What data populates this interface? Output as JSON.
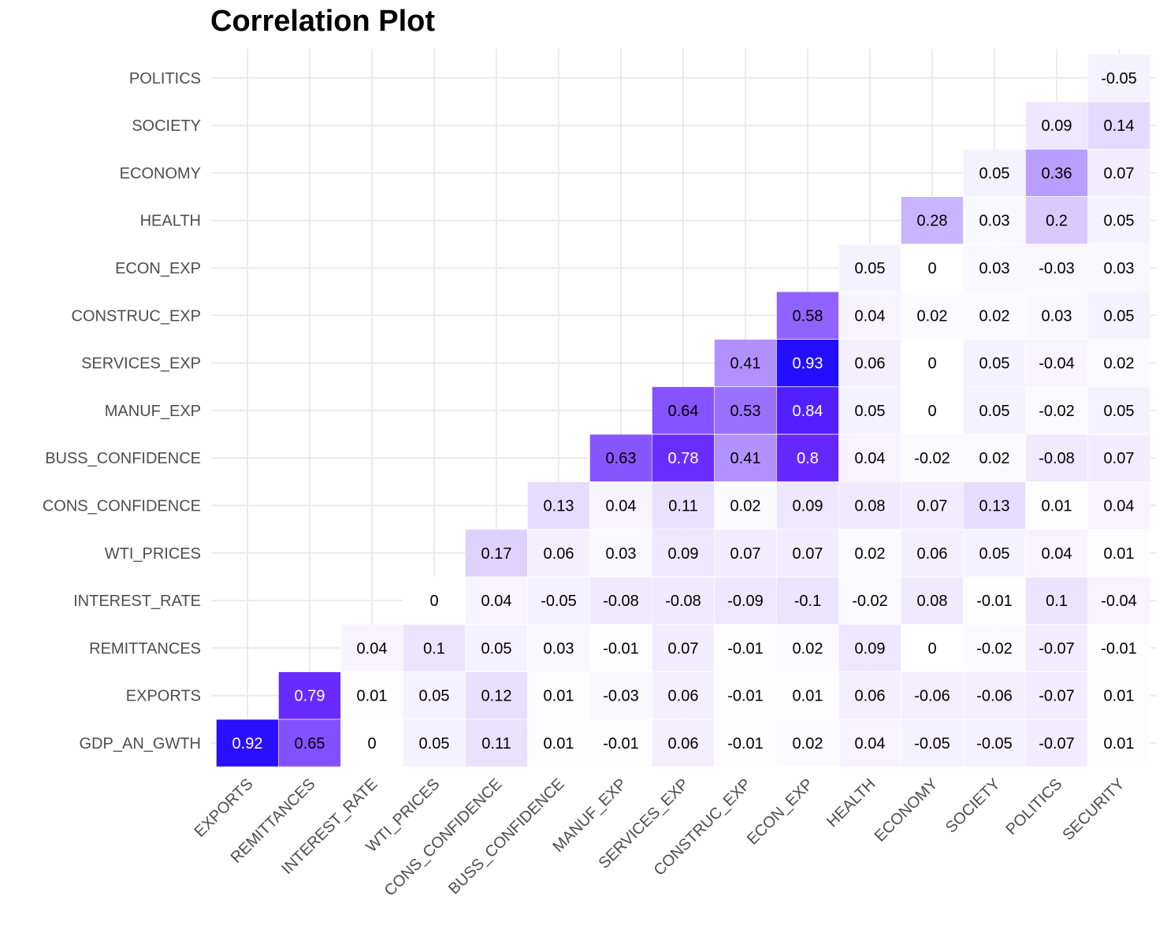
{
  "chart_data": {
    "type": "heatmap",
    "title": "Correlation Plot",
    "x_categories": [
      "EXPORTS",
      "REMITTANCES",
      "INTEREST_RATE",
      "WTI_PRICES",
      "CONS_CONFIDENCE",
      "BUSS_CONFIDENCE",
      "MANUF_EXP",
      "SERVICES_EXP",
      "CONSTRUC_EXP",
      "ECON_EXP",
      "HEALTH",
      "ECONOMY",
      "SOCIETY",
      "POLITICS",
      "SECURITY"
    ],
    "y_categories": [
      "GDP_AN_GWTH",
      "EXPORTS",
      "REMITTANCES",
      "INTEREST_RATE",
      "WTI_PRICES",
      "CONS_CONFIDENCE",
      "BUSS_CONFIDENCE",
      "MANUF_EXP",
      "SERVICES_EXP",
      "CONSTRUC_EXP",
      "ECON_EXP",
      "HEALTH",
      "ECONOMY",
      "SOCIETY",
      "POLITICS"
    ],
    "rows": [
      {
        "y": "GDP_AN_GWTH",
        "start": 0,
        "values": [
          0.92,
          0.65,
          0,
          0.05,
          0.11,
          0.01,
          -0.01,
          0.06,
          -0.01,
          0.02,
          0.04,
          -0.05,
          -0.05,
          -0.07,
          0.01
        ]
      },
      {
        "y": "EXPORTS",
        "start": 1,
        "values": [
          0.79,
          0.01,
          0.05,
          0.12,
          0.01,
          -0.03,
          0.06,
          -0.01,
          0.01,
          0.06,
          -0.06,
          -0.06,
          -0.07,
          0.01
        ]
      },
      {
        "y": "REMITTANCES",
        "start": 2,
        "values": [
          0.04,
          0.1,
          0.05,
          0.03,
          -0.01,
          0.07,
          -0.01,
          0.02,
          0.09,
          0,
          -0.02,
          -0.07,
          -0.01
        ]
      },
      {
        "y": "INTEREST_RATE",
        "start": 3,
        "values": [
          0,
          0.04,
          -0.05,
          -0.08,
          -0.08,
          -0.09,
          -0.1,
          -0.02,
          0.08,
          -0.01,
          0.1,
          -0.04
        ]
      },
      {
        "y": "WTI_PRICES",
        "start": 4,
        "values": [
          0.17,
          0.06,
          0.03,
          0.09,
          0.07,
          0.07,
          0.02,
          0.06,
          0.05,
          0.04,
          0.01
        ]
      },
      {
        "y": "CONS_CONFIDENCE",
        "start": 5,
        "values": [
          0.13,
          0.04,
          0.11,
          0.02,
          0.09,
          0.08,
          0.07,
          0.13,
          0.01,
          0.04
        ]
      },
      {
        "y": "BUSS_CONFIDENCE",
        "start": 6,
        "values": [
          0.63,
          0.78,
          0.41,
          0.8,
          0.04,
          -0.02,
          0.02,
          -0.08,
          0.07
        ]
      },
      {
        "y": "MANUF_EXP",
        "start": 7,
        "values": [
          0.64,
          0.53,
          0.84,
          0.05,
          0,
          0.05,
          -0.02,
          0.05
        ]
      },
      {
        "y": "SERVICES_EXP",
        "start": 8,
        "values": [
          0.41,
          0.93,
          0.06,
          0,
          0.05,
          -0.04,
          0.02
        ]
      },
      {
        "y": "CONSTRUC_EXP",
        "start": 9,
        "values": [
          0.58,
          0.04,
          0.02,
          0.02,
          0.03,
          0.05
        ]
      },
      {
        "y": "ECON_EXP",
        "start": 10,
        "values": [
          0.05,
          0,
          0.03,
          -0.03,
          0.03
        ]
      },
      {
        "y": "HEALTH",
        "start": 11,
        "values": [
          0.28,
          0.03,
          0.2,
          0.05
        ]
      },
      {
        "y": "ECONOMY",
        "start": 12,
        "values": [
          0.05,
          0.36,
          0.07
        ]
      },
      {
        "y": "SOCIETY",
        "start": 13,
        "values": [
          0.09,
          0.14
        ]
      },
      {
        "y": "POLITICS",
        "start": 14,
        "values": [
          -0.05
        ]
      }
    ],
    "color_scale": {
      "low": "#ffffff",
      "high": "#0000ff"
    },
    "grid": true,
    "legend": "none"
  }
}
